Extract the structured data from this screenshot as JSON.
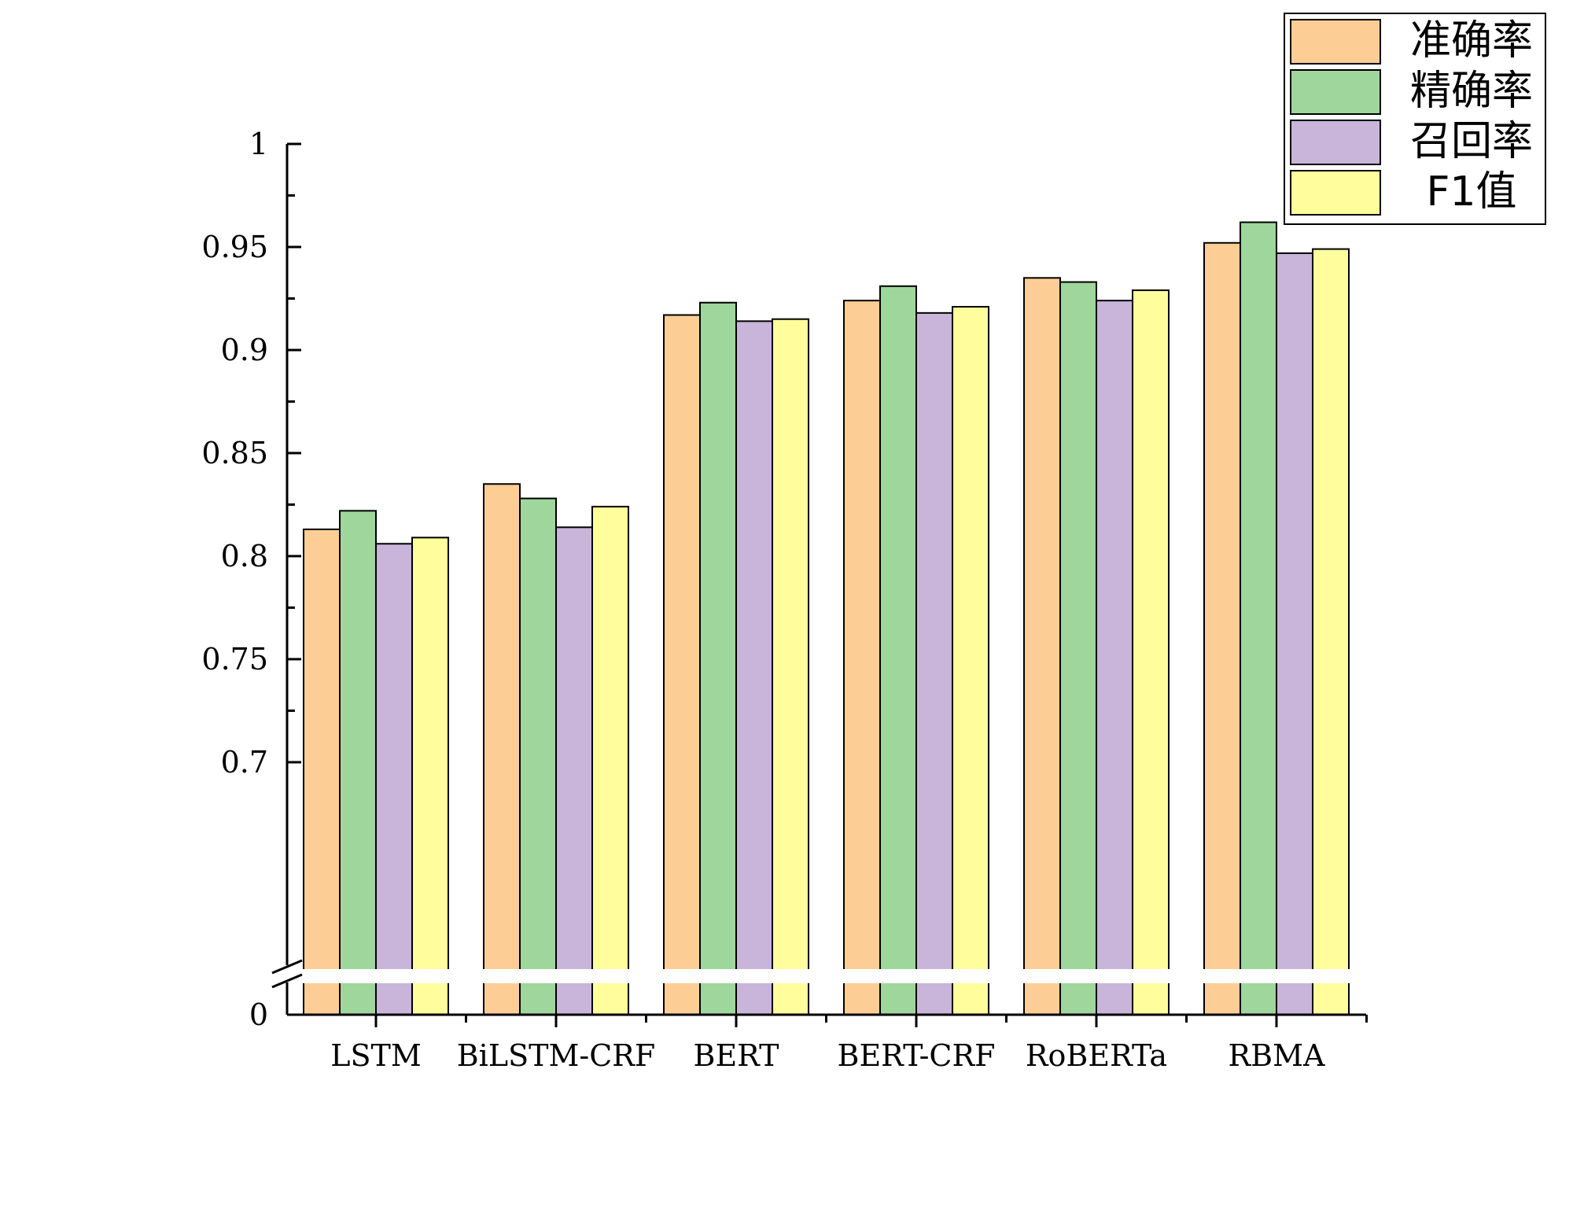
{
  "chart_data": {
    "type": "bar",
    "categories": [
      "LSTM",
      "BiLSTM-CRF",
      "BERT",
      "BERT-CRF",
      "RoBERTa",
      "RBMA"
    ],
    "series": [
      {
        "name": "准确率",
        "color": "#fdcd96",
        "values": [
          0.813,
          0.835,
          0.917,
          0.924,
          0.935,
          0.952
        ]
      },
      {
        "name": "精确率",
        "color": "#9ed69b",
        "values": [
          0.822,
          0.828,
          0.923,
          0.931,
          0.933,
          0.962
        ]
      },
      {
        "name": "召回率",
        "color": "#c8b5d9",
        "values": [
          0.806,
          0.814,
          0.914,
          0.918,
          0.924,
          0.947
        ]
      },
      {
        "name": "F1值",
        "color": "#fffd9c",
        "values": [
          0.809,
          0.824,
          0.915,
          0.921,
          0.929,
          0.949
        ]
      }
    ],
    "y_ticks": [
      "1",
      "0.95",
      "0.9",
      "0.85",
      "0.8",
      "0.75",
      "0.7",
      "0"
    ],
    "ylim": [
      0,
      1
    ],
    "axis_break": true,
    "grid": false,
    "legend_position": "top-right",
    "title": "",
    "xlabel": "",
    "ylabel": ""
  }
}
